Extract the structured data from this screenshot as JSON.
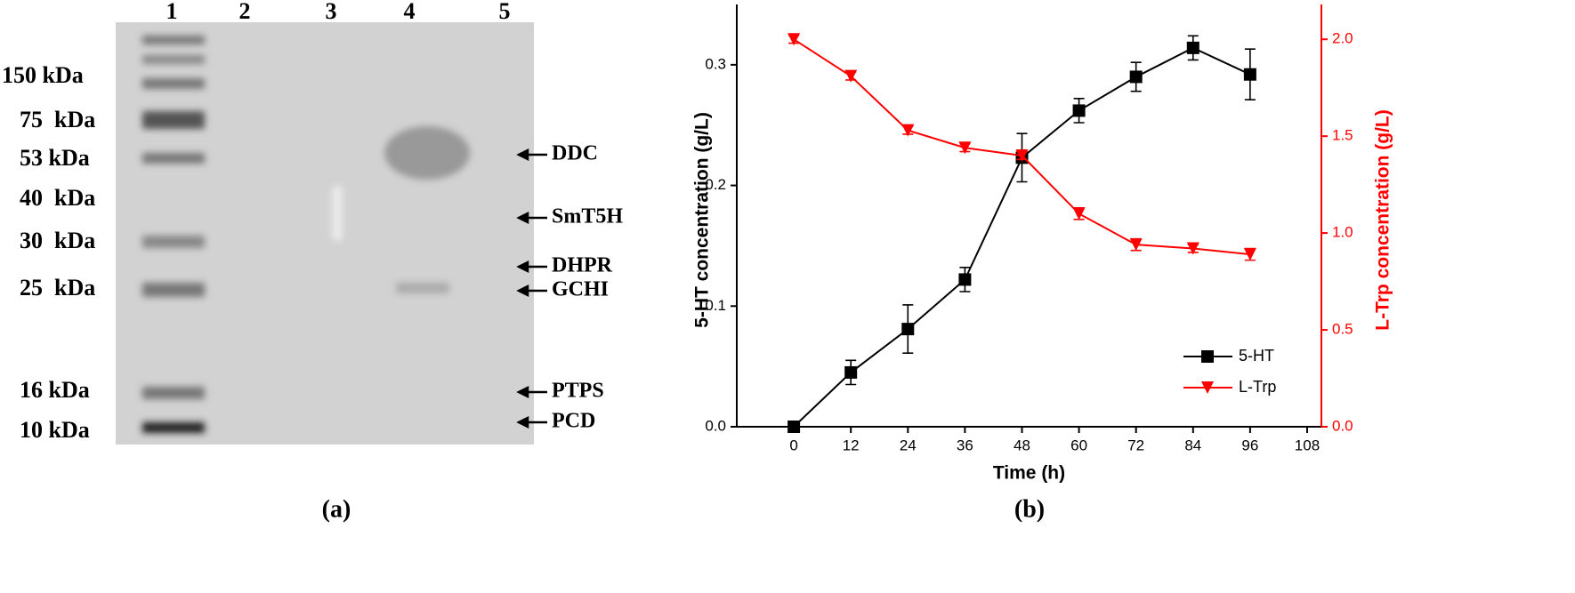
{
  "gel": {
    "lanes": [
      "1",
      "2",
      "3",
      "4",
      "5"
    ],
    "markers": [
      "150 kDa",
      "75  kDa",
      "53 kDa",
      "40  kDa",
      "30  kDa",
      "25  kDa",
      "16 kDa",
      "10 kDa"
    ],
    "bands": [
      "DDC",
      "SmT5H",
      "DHPR",
      "GCHI",
      "PTPS",
      "PCD"
    ],
    "caption": "(a)"
  },
  "chart_data": {
    "type": "line",
    "caption": "(b)",
    "x_label": "Time (h)",
    "y_label": "5-HT concentration (g/L)",
    "y2_label": "L-Trp concentration (g/L)",
    "x": [
      0,
      12,
      24,
      36,
      48,
      60,
      72,
      84,
      96
    ],
    "xlim": [
      -12,
      111
    ],
    "xticks": [
      0,
      12,
      24,
      36,
      48,
      60,
      72,
      84,
      96,
      108
    ],
    "ylim": [
      0,
      0.35
    ],
    "yticks": [
      {
        "value": 0,
        "label": "0.0"
      },
      0.1,
      0.2,
      0.3
    ],
    "y2lim": [
      0,
      2.18
    ],
    "y2ticks": [
      {
        "value": 0,
        "label": "0.0"
      },
      0.5,
      {
        "value": 1,
        "label": "1.0"
      },
      1.5,
      {
        "value": 2,
        "label": "2.0"
      }
    ],
    "legend": "lower right",
    "series": [
      {
        "name": "5-HT",
        "color": "#000000",
        "marker": "square",
        "values": [
          0,
          0.045,
          0.081,
          0.122,
          0.223,
          0.262,
          0.29,
          0.314,
          0.292
        ],
        "errors": [
          0,
          0.01,
          0.02,
          0.01,
          0.02,
          0.01,
          0.012,
          0.01,
          0.021
        ]
      },
      {
        "name": "L-Trp",
        "color": "#ff0000",
        "marker": "triangle-down",
        "axis": "y2",
        "values": [
          2.0,
          1.81,
          1.53,
          1.44,
          1.4,
          1.1,
          0.94,
          0.92,
          0.89
        ],
        "errors": [
          0.02,
          0.02,
          0.02,
          0.02,
          0.02,
          0.03,
          0.03,
          0.02,
          0.03
        ]
      }
    ]
  }
}
